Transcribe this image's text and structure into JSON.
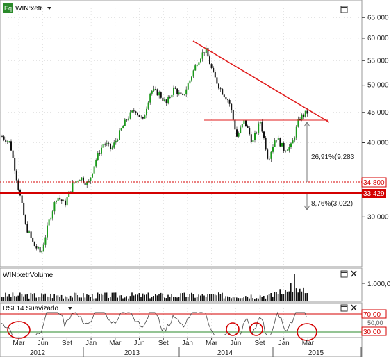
{
  "colors": {
    "candle_up": "#1a9a1a",
    "candle_down": "#111111",
    "trendline": "#e01b1b",
    "support": "#d40000",
    "rsi_line": "#444444",
    "rsi_band_upper": "#d40000",
    "rsi_band_lower": "#2a8a2a",
    "annotation": "#d40000",
    "grid": "#c8c8c8",
    "price_badge_red": "#d40000"
  },
  "price_pane": {
    "symbol_badge": "Eq",
    "symbol_label": "WIN:xetr",
    "dropdown_icon": "triangle-down",
    "maximize_icon": "square",
    "price_labels": {
      "resistance": "34,800",
      "support": "33,429"
    },
    "annotations": {
      "upside": "26,91%(9,283",
      "downside": "8,76%(3,022)"
    }
  },
  "volume_pane": {
    "title": "WIN:xetrVolume",
    "axis_label": "1.000,0",
    "close_icon": "x",
    "maximize_icon": "square"
  },
  "rsi_pane": {
    "title": "RSI 14 Suavizado",
    "upper_label": "70,00",
    "lower_label": "30,00",
    "partial_label": "50,00",
    "close_icon": "x",
    "maximize_icon": "square"
  },
  "chart_data": {
    "type": "line",
    "title": "",
    "x_months": [
      "Mar",
      "Jun",
      "Set",
      "Jan",
      "Mar",
      "Jun",
      "Set",
      "Jan",
      "Mar",
      "Jun",
      "Set",
      "Jan",
      "Mar"
    ],
    "x_years": [
      "2012",
      "2013",
      "2014",
      "2015"
    ],
    "y_ticks": [
      "65,000",
      "60,000",
      "55,000",
      "50,000",
      "45,000",
      "40,000",
      "30,000"
    ],
    "ylim": [
      25000,
      67000
    ],
    "y_scale": "log",
    "series": [
      {
        "x": [
          "2011-12",
          "2012-01",
          "2012-02",
          "2012-03",
          "2012-04",
          "2012-05",
          "2012-06",
          "2012-07",
          "2012-08",
          "2012-09",
          "2012-10",
          "2012-11",
          "2012-12",
          "2013-01",
          "2013-02",
          "2013-03",
          "2013-04",
          "2013-05",
          "2013-06",
          "2013-07",
          "2013-08",
          "2013-09",
          "2013-10",
          "2013-11",
          "2013-12",
          "2014-01",
          "2014-02",
          "2014-03",
          "2014-04",
          "2014-05",
          "2014-06",
          "2014-07",
          "2014-08",
          "2014-09",
          "2014-10",
          "2014-11",
          "2014-12",
          "2015-01",
          "2015-02",
          "2015-03"
        ],
        "values": [
          41000,
          40000,
          34000,
          29000,
          27000,
          26000,
          29500,
          32500,
          31500,
          34000,
          35000,
          34000,
          37500,
          40000,
          39000,
          41500,
          44000,
          45500,
          43500,
          49000,
          48500,
          46500,
          49500,
          47500,
          51000,
          55000,
          57500,
          52000,
          49000,
          47000,
          41000,
          43500,
          40000,
          43500,
          37500,
          41000,
          39000,
          39500,
          44000,
          45000
        ]
      }
    ],
    "ymarks": [
      {
        "value": 34800,
        "style": "dotted"
      },
      {
        "value": 33429,
        "style": "solid"
      }
    ]
  }
}
